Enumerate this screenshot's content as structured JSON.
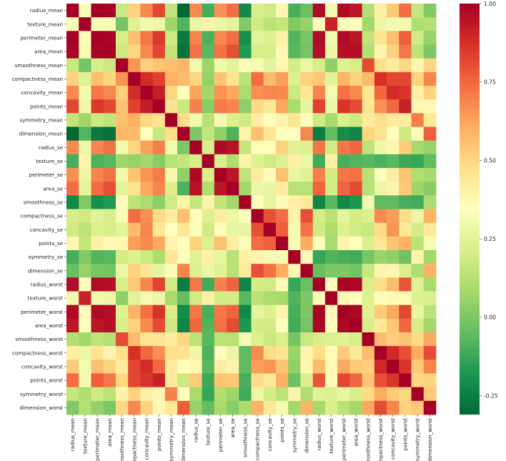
{
  "chart_data": {
    "type": "heatmap",
    "title": "",
    "labels": [
      "radius_mean",
      "texture_mean",
      "perimeter_mean",
      "area_mean",
      "smoothness_mean",
      "compactness_mean",
      "concavity_mean",
      "points_mean",
      "symmetry_mean",
      "dimension_mean",
      "radius_se",
      "texture_se",
      "perimeter_se",
      "area_se",
      "smoothness_se",
      "compactness_se",
      "concavity_se",
      "points_se",
      "symmetry_se",
      "dimension_se",
      "radius_worst",
      "texture_worst",
      "perimeter_worst",
      "area_worst",
      "smoothness_worst",
      "compactness_worst",
      "concavity_worst",
      "points_worst",
      "symmetry_worst",
      "dimension_worst"
    ],
    "colorbar": {
      "colormap": "RdYlGn_r",
      "vmin": -0.31,
      "vmax": 1.0,
      "ticks": [
        -0.25,
        0.0,
        0.25,
        0.5,
        0.75,
        1.0
      ],
      "tick_labels": [
        "-0.25",
        "0.00",
        "0.25",
        "0.50",
        "0.75",
        "1.00"
      ]
    },
    "matrix": [
      [
        1.0,
        0.32,
        1.0,
        0.99,
        0.17,
        0.51,
        0.68,
        0.82,
        0.15,
        -0.31,
        0.68,
        -0.1,
        0.67,
        0.74,
        -0.22,
        0.21,
        0.19,
        0.38,
        -0.1,
        -0.04,
        0.97,
        0.3,
        0.97,
        0.94,
        0.12,
        0.41,
        0.53,
        0.74,
        0.16,
        0.01
      ],
      [
        0.32,
        1.0,
        0.33,
        0.32,
        -0.02,
        0.24,
        0.3,
        0.29,
        0.07,
        -0.08,
        0.28,
        0.39,
        0.28,
        0.26,
        0.01,
        0.19,
        0.14,
        0.16,
        0.01,
        0.05,
        0.35,
        0.91,
        0.36,
        0.34,
        0.08,
        0.28,
        0.3,
        0.3,
        0.11,
        0.12
      ],
      [
        1.0,
        0.33,
        1.0,
        0.99,
        0.21,
        0.56,
        0.72,
        0.85,
        0.18,
        -0.26,
        0.69,
        -0.09,
        0.69,
        0.74,
        -0.2,
        0.25,
        0.23,
        0.41,
        -0.08,
        -0.01,
        0.97,
        0.3,
        0.97,
        0.94,
        0.15,
        0.46,
        0.56,
        0.77,
        0.19,
        0.05
      ],
      [
        0.99,
        0.32,
        0.99,
        1.0,
        0.18,
        0.5,
        0.69,
        0.82,
        0.15,
        -0.28,
        0.73,
        -0.07,
        0.73,
        0.8,
        -0.17,
        0.21,
        0.21,
        0.37,
        -0.07,
        -0.02,
        0.96,
        0.29,
        0.96,
        0.96,
        0.12,
        0.39,
        0.51,
        0.72,
        0.14,
        0.0
      ],
      [
        0.17,
        -0.02,
        0.21,
        0.18,
        1.0,
        0.66,
        0.52,
        0.55,
        0.56,
        0.58,
        0.3,
        0.07,
        0.3,
        0.25,
        0.33,
        0.32,
        0.25,
        0.38,
        0.2,
        0.28,
        0.21,
        0.04,
        0.24,
        0.21,
        0.81,
        0.47,
        0.43,
        0.5,
        0.39,
        0.5
      ],
      [
        0.51,
        0.24,
        0.56,
        0.5,
        0.66,
        1.0,
        0.88,
        0.83,
        0.6,
        0.57,
        0.5,
        0.05,
        0.55,
        0.46,
        0.14,
        0.74,
        0.57,
        0.64,
        0.23,
        0.51,
        0.54,
        0.25,
        0.59,
        0.51,
        0.57,
        0.87,
        0.82,
        0.82,
        0.51,
        0.69
      ],
      [
        0.68,
        0.3,
        0.72,
        0.69,
        0.52,
        0.88,
        1.0,
        0.92,
        0.5,
        0.34,
        0.63,
        0.08,
        0.66,
        0.62,
        0.1,
        0.67,
        0.69,
        0.68,
        0.18,
        0.45,
        0.69,
        0.3,
        0.73,
        0.68,
        0.45,
        0.75,
        0.88,
        0.86,
        0.41,
        0.51
      ],
      [
        0.82,
        0.29,
        0.85,
        0.82,
        0.55,
        0.83,
        0.92,
        1.0,
        0.46,
        0.17,
        0.7,
        0.02,
        0.71,
        0.69,
        0.03,
        0.49,
        0.44,
        0.62,
        0.1,
        0.26,
        0.83,
        0.29,
        0.86,
        0.81,
        0.45,
        0.67,
        0.75,
        0.91,
        0.38,
        0.37
      ],
      [
        0.15,
        0.07,
        0.18,
        0.15,
        0.56,
        0.6,
        0.5,
        0.46,
        1.0,
        0.48,
        0.3,
        0.13,
        0.31,
        0.22,
        0.19,
        0.42,
        0.34,
        0.39,
        0.45,
        0.33,
        0.19,
        0.09,
        0.22,
        0.18,
        0.43,
        0.47,
        0.43,
        0.43,
        0.7,
        0.44
      ],
      [
        -0.31,
        -0.08,
        -0.26,
        -0.28,
        0.58,
        0.57,
        0.34,
        0.17,
        0.48,
        1.0,
        0.0,
        0.16,
        0.04,
        -0.09,
        0.4,
        0.56,
        0.45,
        0.34,
        0.35,
        0.69,
        -0.25,
        -0.05,
        -0.21,
        -0.23,
        0.5,
        0.46,
        0.35,
        0.18,
        0.33,
        0.77
      ],
      [
        0.68,
        0.28,
        0.69,
        0.73,
        0.3,
        0.5,
        0.63,
        0.7,
        0.3,
        0.0,
        1.0,
        0.21,
        0.97,
        0.95,
        0.16,
        0.36,
        0.33,
        0.51,
        0.24,
        0.23,
        0.72,
        0.19,
        0.72,
        0.75,
        0.14,
        0.29,
        0.38,
        0.53,
        0.09,
        0.05
      ],
      [
        -0.1,
        0.39,
        -0.09,
        -0.07,
        0.07,
        0.05,
        0.08,
        0.02,
        0.13,
        0.16,
        0.21,
        1.0,
        0.22,
        0.11,
        0.4,
        0.23,
        0.19,
        0.23,
        0.41,
        0.28,
        -0.11,
        0.41,
        -0.1,
        -0.08,
        -0.07,
        -0.09,
        -0.07,
        -0.12,
        -0.13,
        -0.05
      ],
      [
        0.67,
        0.28,
        0.69,
        0.73,
        0.3,
        0.55,
        0.66,
        0.71,
        0.31,
        0.04,
        0.97,
        0.22,
        1.0,
        0.94,
        0.15,
        0.42,
        0.36,
        0.56,
        0.27,
        0.24,
        0.7,
        0.2,
        0.72,
        0.73,
        0.13,
        0.34,
        0.42,
        0.55,
        0.11,
        0.09
      ],
      [
        0.74,
        0.26,
        0.74,
        0.8,
        0.25,
        0.46,
        0.62,
        0.69,
        0.22,
        -0.09,
        0.95,
        0.11,
        0.94,
        1.0,
        0.08,
        0.28,
        0.27,
        0.42,
        0.13,
        0.13,
        0.76,
        0.2,
        0.76,
        0.81,
        0.13,
        0.28,
        0.39,
        0.54,
        0.07,
        0.02
      ],
      [
        -0.22,
        0.01,
        -0.2,
        -0.17,
        0.33,
        0.14,
        0.1,
        0.03,
        0.19,
        0.4,
        0.16,
        0.4,
        0.15,
        0.08,
        1.0,
        0.34,
        0.27,
        0.33,
        0.41,
        0.43,
        -0.23,
        -0.07,
        -0.22,
        -0.18,
        0.31,
        -0.06,
        -0.06,
        -0.1,
        -0.11,
        0.1
      ],
      [
        0.21,
        0.19,
        0.25,
        0.21,
        0.32,
        0.74,
        0.67,
        0.49,
        0.42,
        0.56,
        0.36,
        0.23,
        0.42,
        0.28,
        0.34,
        1.0,
        0.8,
        0.74,
        0.39,
        0.8,
        0.2,
        0.14,
        0.26,
        0.2,
        0.23,
        0.68,
        0.64,
        0.48,
        0.28,
        0.59
      ],
      [
        0.19,
        0.14,
        0.23,
        0.21,
        0.25,
        0.57,
        0.69,
        0.44,
        0.34,
        0.45,
        0.33,
        0.19,
        0.36,
        0.27,
        0.27,
        0.8,
        1.0,
        0.77,
        0.31,
        0.73,
        0.19,
        0.1,
        0.23,
        0.19,
        0.17,
        0.48,
        0.66,
        0.44,
        0.2,
        0.44
      ],
      [
        0.38,
        0.16,
        0.41,
        0.37,
        0.38,
        0.64,
        0.68,
        0.62,
        0.39,
        0.34,
        0.51,
        0.23,
        0.56,
        0.42,
        0.33,
        0.74,
        0.77,
        1.0,
        0.31,
        0.61,
        0.36,
        0.09,
        0.39,
        0.34,
        0.22,
        0.45,
        0.55,
        0.6,
        0.14,
        0.31
      ],
      [
        -0.1,
        0.01,
        -0.08,
        -0.07,
        0.2,
        0.23,
        0.18,
        0.1,
        0.45,
        0.35,
        0.24,
        0.41,
        0.27,
        0.13,
        0.41,
        0.39,
        0.31,
        0.31,
        1.0,
        0.37,
        -0.13,
        -0.08,
        -0.1,
        -0.11,
        -0.01,
        0.06,
        0.04,
        -0.03,
        0.39,
        0.08
      ],
      [
        -0.04,
        0.05,
        -0.01,
        -0.02,
        0.28,
        0.51,
        0.45,
        0.26,
        0.33,
        0.69,
        0.23,
        0.28,
        0.24,
        0.13,
        0.43,
        0.8,
        0.73,
        0.61,
        0.37,
        1.0,
        -0.04,
        -0.0,
        -0.0,
        -0.02,
        0.17,
        0.39,
        0.38,
        0.22,
        0.11,
        0.59
      ],
      [
        0.97,
        0.35,
        0.97,
        0.96,
        0.21,
        0.54,
        0.69,
        0.83,
        0.19,
        -0.25,
        0.72,
        -0.11,
        0.7,
        0.76,
        -0.23,
        0.2,
        0.19,
        0.36,
        -0.13,
        -0.04,
        1.0,
        0.36,
        0.99,
        0.98,
        0.22,
        0.48,
        0.57,
        0.79,
        0.24,
        0.09
      ],
      [
        0.3,
        0.91,
        0.3,
        0.29,
        0.04,
        0.25,
        0.3,
        0.29,
        0.09,
        -0.05,
        0.19,
        0.41,
        0.2,
        0.2,
        -0.07,
        0.14,
        0.1,
        0.09,
        -0.08,
        -0.0,
        0.36,
        1.0,
        0.37,
        0.35,
        0.23,
        0.36,
        0.37,
        0.36,
        0.23,
        0.22
      ],
      [
        0.97,
        0.36,
        0.97,
        0.96,
        0.24,
        0.59,
        0.73,
        0.86,
        0.22,
        -0.21,
        0.72,
        -0.1,
        0.72,
        0.76,
        -0.22,
        0.26,
        0.23,
        0.39,
        -0.1,
        -0.0,
        0.99,
        0.37,
        1.0,
        0.98,
        0.24,
        0.53,
        0.62,
        0.82,
        0.27,
        0.14
      ],
      [
        0.94,
        0.34,
        0.94,
        0.96,
        0.21,
        0.51,
        0.68,
        0.81,
        0.18,
        -0.23,
        0.75,
        -0.08,
        0.73,
        0.81,
        -0.18,
        0.2,
        0.19,
        0.34,
        -0.11,
        -0.02,
        0.98,
        0.35,
        0.98,
        1.0,
        0.21,
        0.44,
        0.54,
        0.75,
        0.21,
        0.08
      ],
      [
        0.12,
        0.08,
        0.15,
        0.12,
        0.81,
        0.57,
        0.45,
        0.45,
        0.43,
        0.5,
        0.14,
        -0.07,
        0.13,
        0.13,
        0.31,
        0.23,
        0.17,
        0.22,
        -0.01,
        0.17,
        0.22,
        0.23,
        0.24,
        0.21,
        1.0,
        0.57,
        0.52,
        0.55,
        0.49,
        0.62
      ],
      [
        0.41,
        0.28,
        0.46,
        0.39,
        0.47,
        0.87,
        0.75,
        0.67,
        0.47,
        0.46,
        0.29,
        -0.09,
        0.34,
        0.28,
        -0.06,
        0.68,
        0.48,
        0.45,
        0.06,
        0.39,
        0.48,
        0.36,
        0.53,
        0.44,
        0.57,
        1.0,
        0.89,
        0.8,
        0.61,
        0.81
      ],
      [
        0.53,
        0.3,
        0.56,
        0.51,
        0.43,
        0.82,
        0.88,
        0.75,
        0.43,
        0.35,
        0.38,
        -0.07,
        0.42,
        0.39,
        -0.06,
        0.64,
        0.66,
        0.55,
        0.04,
        0.38,
        0.57,
        0.37,
        0.62,
        0.54,
        0.52,
        0.89,
        1.0,
        0.86,
        0.53,
        0.69
      ],
      [
        0.74,
        0.3,
        0.77,
        0.72,
        0.5,
        0.82,
        0.86,
        0.91,
        0.43,
        0.18,
        0.53,
        -0.12,
        0.55,
        0.54,
        -0.1,
        0.48,
        0.44,
        0.6,
        -0.03,
        0.22,
        0.79,
        0.36,
        0.82,
        0.75,
        0.55,
        0.8,
        0.86,
        1.0,
        0.5,
        0.51
      ],
      [
        0.16,
        0.11,
        0.19,
        0.14,
        0.39,
        0.51,
        0.41,
        0.38,
        0.7,
        0.33,
        0.09,
        -0.13,
        0.11,
        0.07,
        -0.11,
        0.28,
        0.2,
        0.14,
        0.39,
        0.11,
        0.24,
        0.23,
        0.27,
        0.21,
        0.49,
        0.61,
        0.53,
        0.5,
        1.0,
        0.54
      ],
      [
        0.01,
        0.12,
        0.05,
        0.0,
        0.5,
        0.69,
        0.51,
        0.37,
        0.44,
        0.77,
        0.05,
        -0.05,
        0.09,
        0.02,
        0.1,
        0.59,
        0.44,
        0.31,
        0.08,
        0.59,
        0.09,
        0.22,
        0.14,
        0.08,
        0.62,
        0.81,
        0.69,
        0.51,
        0.54,
        1.0
      ]
    ]
  }
}
